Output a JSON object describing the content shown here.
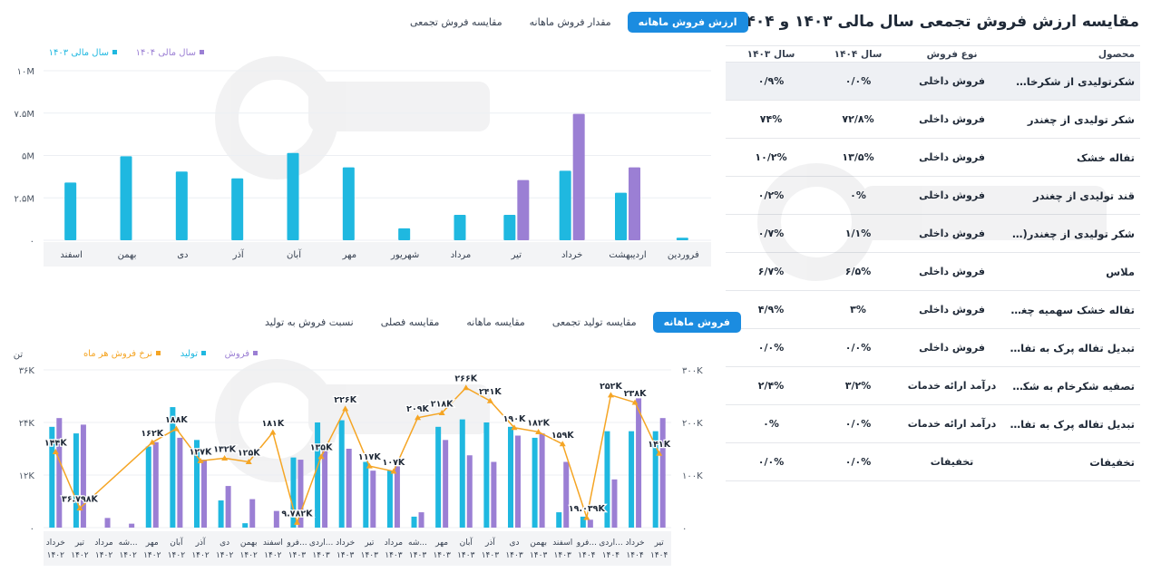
{
  "top_tabs": [
    "ارزش فروش ماهانه",
    "مقدار فروش ماهانه",
    "مقایسه فروش تجمعی"
  ],
  "bottom_tabs": [
    "فروش ماهانه",
    "مقایسه تولید تجمعی",
    "مقایسه ماهانه",
    "مقایسه فصلی",
    "نسبت فروش به تولید"
  ],
  "panel": {
    "title": "مقایسه ارزش فروش تجمعی سال مالی ۱۴۰۳ و ۱۴۰۴",
    "icon": "export-excel-icon",
    "columns": [
      "محصول",
      "نوع فروش",
      "سال ۱۴۰۴",
      "سال ۱۴۰۳"
    ],
    "rows": [
      {
        "product": "شکرتولیدی از شکرخام خریداری",
        "type": "فروش داخلی",
        "y1404": "۰/۰%",
        "y1403": "۰/۹%"
      },
      {
        "product": "شکر تولیدی از چغندر",
        "type": "فروش داخلی",
        "y1404": "۷۲/۸%",
        "y1403": "۷۴%"
      },
      {
        "product": "تفاله خشک",
        "type": "فروش داخلی",
        "y1404": "۱۳/۵%",
        "y1403": "۱۰/۲%"
      },
      {
        "product": "قند تولیدی از چغندر",
        "type": "فروش داخلی",
        "y1404": "۰%",
        "y1403": "۰/۲%"
      },
      {
        "product": "شکر تولیدی از چغندر(سهمیه چغنـ...",
        "type": "فروش داخلی",
        "y1404": "۱/۱%",
        "y1403": "۰/۷%"
      },
      {
        "product": "ملاس",
        "type": "فروش داخلی",
        "y1404": "۶/۵%",
        "y1403": "۶/۷%"
      },
      {
        "product": "تفاله خشک سهمیه چغندرکاران",
        "type": "فروش داخلی",
        "y1404": "۳%",
        "y1403": "۴/۹%"
      },
      {
        "product": "تبدیل تفاله پرک به تفاله خشک",
        "type": "فروش داخلی",
        "y1404": "۰/۰%",
        "y1403": "۰/۰%"
      },
      {
        "product": "تصفیه شکرخام به شکر سفید (کار...",
        "type": "درآمد ارائه خدمات",
        "y1404": "۳/۲%",
        "y1403": "۲/۴%"
      },
      {
        "product": "تبدیل تفاله پرک به تفاله خشک",
        "type": "درآمد ارائه خدمات",
        "y1404": "۰/۰%",
        "y1403": "۰%"
      },
      {
        "product": "تخفیفات",
        "type": "تخفیفات",
        "y1404": "۰/۰%",
        "y1403": "۰/۰%"
      }
    ]
  },
  "chart_data": [
    {
      "type": "bar",
      "categories": [
        "فروردین",
        "اردیبهشت",
        "خرداد",
        "تیر",
        "مرداد",
        "شهریور",
        "مهر",
        "آبان",
        "آذر",
        "دی",
        "بهمن",
        "اسفند"
      ],
      "y_ticks": [
        "۰",
        "۲.۵M",
        "۵M",
        "۷.۵M",
        "۱۰M"
      ],
      "ylim": [
        0,
        10000000
      ],
      "legend_position": "top-left",
      "series": [
        {
          "name": "سال مالی ۱۴۰۳",
          "color": "#1fb8e0",
          "values": [
            150000,
            2800000,
            4100000,
            1500000,
            1500000,
            700000,
            4300000,
            5150000,
            3650000,
            4050000,
            4950000,
            3400000
          ]
        },
        {
          "name": "سال مالی ۱۴۰۴",
          "color": "#9b7fd4",
          "values": [
            0,
            4300000,
            7450000,
            3550000,
            0,
            0,
            0,
            0,
            0,
            0,
            0,
            0
          ]
        }
      ]
    },
    {
      "type": "bar",
      "categories": [
        "خرداد ۱۴۰۲",
        "تیر ۱۴۰۲",
        "مرداد ۱۴۰۲",
        "شه... ۱۴۰۲",
        "مهر ۱۴۰۲",
        "آبان ۱۴۰۲",
        "آذر ۱۴۰۲",
        "دی ۱۴۰۲",
        "بهمن ۱۴۰۲",
        "اسفند ۱۴۰۲",
        "فرو... ۱۴۰۳",
        "اردی... ۱۴۰۳",
        "خرداد ۱۴۰۳",
        "تیر ۱۴۰۳",
        "مرداد ۱۴۰۳",
        "شه... ۱۴۰۳",
        "مهر ۱۴۰۳",
        "آبان ۱۴۰۳",
        "آذر ۱۴۰۳",
        "دی ۱۴۰۳",
        "بهمن ۱۴۰۳",
        "اسفند ۱۴۰۳",
        "فرو... ۱۴۰۴",
        "اردی... ۱۴۰۴",
        "خرداد ۱۴۰۴",
        "تیر ۱۴۰۴"
      ],
      "y_left_ticks": [
        "۰",
        "۱۲K",
        "۲۴K",
        "۳۶K"
      ],
      "y_right_ticks": [
        "۰",
        "۱۰۰K",
        "۲۰۰K",
        "۳۰۰K"
      ],
      "y_left_unit": "تن",
      "ylim_left": [
        0,
        36000
      ],
      "ylim_right": [
        0,
        300000
      ],
      "legend_position": "top-left",
      "series": [
        {
          "name": "فروش",
          "color": "#9b7fd4",
          "values": [
            25000,
            23500,
            2200,
            900,
            19500,
            20500,
            15500,
            9500,
            6500,
            3800,
            15500,
            18000,
            18000,
            13000,
            14000,
            3500,
            20000,
            16500,
            15000,
            21000,
            21500,
            15000,
            1800,
            11000,
            29500,
            25000
          ]
        },
        {
          "name": "تولید",
          "color": "#1fb8e0",
          "values": [
            23000,
            21500,
            0,
            0,
            18500,
            27500,
            20000,
            6200,
            1000,
            0,
            16000,
            24000,
            24500,
            15000,
            13000,
            2500,
            23000,
            24700,
            24000,
            23000,
            20500,
            3500,
            2500,
            22000,
            22000,
            22000
          ]
        },
        {
          "name": "نرخ فروش هر ماه",
          "color": "#f5a524",
          "values": [
            144000,
            36798,
            null,
            null,
            162000,
            188000,
            127000,
            132000,
            125000,
            181000,
            9782,
            135000,
            226000,
            117000,
            107000,
            209000,
            218000,
            266000,
            241000,
            190000,
            182000,
            159000,
            19039,
            252000,
            238000,
            141000
          ]
        }
      ],
      "rate_labels": [
        "۱۴۴K",
        "۳۶.۷۹۸K",
        "",
        "",
        "۱۶۲K",
        "۱۸۸K",
        "۱۲۷K",
        "۱۳۲K",
        "۱۲۵K",
        "۱۸۱K",
        "۹.۷۸۲K",
        "۱۳۵K",
        "۲۲۶K",
        "۱۱۷K",
        "۱۰۷K",
        "۲۰۹K",
        "۲۱۸K",
        "۲۶۶K",
        "۲۴۱K",
        "۱۹۰K",
        "۱۸۲K",
        "۱۵۹K",
        "۱۹.۰۳۹K",
        "۲۵۲K",
        "۲۳۸K",
        "۱۴۱K"
      ]
    }
  ]
}
